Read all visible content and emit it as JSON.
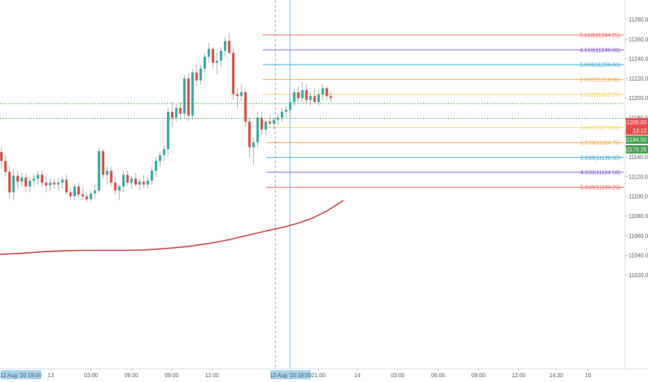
{
  "chart_data": {
    "type": "candlestick",
    "instrument_hint": "",
    "y_axis": {
      "ticks": [
        "11280.00",
        "11260.00",
        "11240.00",
        "11220.00",
        "11200.00",
        "11180.00",
        "11160.00",
        "11140.00",
        "11120.00",
        "11100.00",
        "11080.00",
        "11060.00",
        "11040.00",
        "11020.00"
      ],
      "ylim": [
        11013,
        11290
      ]
    },
    "x_axis": {
      "ticks": [
        "12 Aug '20  19:00",
        "13",
        "03:00",
        "06:00",
        "09:00",
        "12:00",
        "13 Aug '20  19:00",
        "21:00",
        "14",
        "03:00",
        "06:00",
        "09:00",
        "12:00",
        "14:30",
        "16"
      ],
      "highlighted": [
        "12 Aug '20  19:00",
        "13 Aug '20  19:00"
      ]
    },
    "price_badges": [
      {
        "label": "11200.00",
        "value": 11200.0,
        "color": "#e84a4a"
      },
      {
        "label": "13:13",
        "value": null,
        "color": "#e84a4a"
      },
      {
        "label": "11194.50",
        "value": 11194.5,
        "color": "#3f9d48"
      },
      {
        "label": "11179.25",
        "value": 11179.25,
        "color": "#3f9d48"
      }
    ],
    "dotted_levels": [
      11194.5,
      11179.25
    ],
    "fib_levels": [
      {
        "label": "5.618(11264.25)",
        "value": 11264.25,
        "color": "#f0574c"
      },
      {
        "label": "4.618(11249.00)",
        "value": 11249.0,
        "color": "#7a4fc9"
      },
      {
        "label": "3.618(11234.00)",
        "value": 11234.0,
        "color": "#2aa1d6"
      },
      {
        "label": "2.618(11219.00)",
        "value": 11219.0,
        "color": "#ff9c2a"
      },
      {
        "label": "1.618(11203.75)",
        "value": 11203.75,
        "color": "#f5d44a"
      },
      {
        "label": "1.618(11170.00)",
        "value": 11170.0,
        "color": "#f5d44a"
      },
      {
        "label": "2.618(11154.75)",
        "value": 11154.75,
        "color": "#ff9c2a"
      },
      {
        "label": "3.618(11139.50)",
        "value": 11139.5,
        "color": "#2aa1d6"
      },
      {
        "label": "4.618(11124.50)",
        "value": 11124.5,
        "color": "#7a4fc9"
      },
      {
        "label": "5.618(11109.25)",
        "value": 11109.25,
        "color": "#f0574c"
      }
    ],
    "moving_average": {
      "color": "#c0282c",
      "points": [
        [
          0,
          11041
        ],
        [
          30,
          11042
        ],
        [
          60,
          11043.5
        ],
        [
          90,
          11044.5
        ],
        [
          120,
          11045
        ],
        [
          150,
          11045
        ],
        [
          180,
          11045
        ],
        [
          210,
          11045.5
        ],
        [
          240,
          11047
        ],
        [
          270,
          11049
        ],
        [
          300,
          11052
        ],
        [
          330,
          11056
        ],
        [
          360,
          11061
        ],
        [
          390,
          11066
        ],
        [
          410,
          11069
        ],
        [
          430,
          11073
        ],
        [
          450,
          11078
        ],
        [
          470,
          11085
        ],
        [
          494,
          11096
        ]
      ]
    },
    "candles": [
      [
        11145,
        11150,
        11128,
        11136
      ],
      [
        11136,
        11142,
        11120,
        11125
      ],
      [
        11125,
        11130,
        11098,
        11104
      ],
      [
        11104,
        11128,
        11096,
        11121
      ],
      [
        11121,
        11126,
        11108,
        11115
      ],
      [
        11115,
        11124,
        11110,
        11119
      ],
      [
        11119,
        11123,
        11105,
        11110
      ],
      [
        11110,
        11120,
        11104,
        11116
      ],
      [
        11116,
        11122,
        11110,
        11118
      ],
      [
        11118,
        11126,
        11112,
        11122
      ],
      [
        11122,
        11126,
        11110,
        11114
      ],
      [
        11114,
        11120,
        11104,
        11111
      ],
      [
        11111,
        11118,
        11106,
        11114
      ],
      [
        11114,
        11118,
        11108,
        11112
      ],
      [
        11112,
        11118,
        11106,
        11114
      ],
      [
        11114,
        11120,
        11108,
        11117
      ],
      [
        11117,
        11122,
        11102,
        11104
      ],
      [
        11104,
        11108,
        11096,
        11100
      ],
      [
        11100,
        11112,
        11096,
        11110
      ],
      [
        11110,
        11114,
        11098,
        11102
      ],
      [
        11102,
        11110,
        11096,
        11100
      ],
      [
        11100,
        11104,
        11094,
        11097
      ],
      [
        11097,
        11106,
        11095,
        11103
      ],
      [
        11103,
        11112,
        11098,
        11106
      ],
      [
        11106,
        11150,
        11104,
        11146
      ],
      [
        11146,
        11148,
        11118,
        11122
      ],
      [
        11122,
        11130,
        11112,
        11126
      ],
      [
        11126,
        11130,
        11110,
        11114
      ],
      [
        11114,
        11120,
        11102,
        11106
      ],
      [
        11106,
        11112,
        11096,
        11110
      ],
      [
        11110,
        11126,
        11105,
        11122
      ],
      [
        11122,
        11126,
        11110,
        11114
      ],
      [
        11114,
        11120,
        11108,
        11118
      ],
      [
        11118,
        11124,
        11110,
        11112
      ],
      [
        11112,
        11118,
        11106,
        11115
      ],
      [
        11115,
        11122,
        11108,
        11112
      ],
      [
        11112,
        11120,
        11108,
        11116
      ],
      [
        11116,
        11130,
        11112,
        11126
      ],
      [
        11126,
        11140,
        11120,
        11136
      ],
      [
        11136,
        11146,
        11130,
        11142
      ],
      [
        11142,
        11152,
        11136,
        11148
      ],
      [
        11148,
        11190,
        11140,
        11186
      ],
      [
        11186,
        11196,
        11170,
        11180
      ],
      [
        11180,
        11194,
        11176,
        11190
      ],
      [
        11190,
        11196,
        11178,
        11184
      ],
      [
        11184,
        11224,
        11180,
        11220
      ],
      [
        11220,
        11226,
        11176,
        11182
      ],
      [
        11182,
        11230,
        11178,
        11226
      ],
      [
        11226,
        11234,
        11212,
        11218
      ],
      [
        11218,
        11234,
        11214,
        11230
      ],
      [
        11230,
        11246,
        11226,
        11242
      ],
      [
        11242,
        11256,
        11236,
        11250
      ],
      [
        11250,
        11252,
        11230,
        11236
      ],
      [
        11236,
        11246,
        11224,
        11238
      ],
      [
        11238,
        11252,
        11232,
        11248
      ],
      [
        11248,
        11262,
        11242,
        11258
      ],
      [
        11258,
        11266,
        11244,
        11246
      ],
      [
        11246,
        11250,
        11198,
        11204
      ],
      [
        11204,
        11210,
        11190,
        11202
      ],
      [
        11202,
        11214,
        11196,
        11206
      ],
      [
        11206,
        11208,
        11170,
        11176
      ],
      [
        11176,
        11180,
        11140,
        11150
      ],
      [
        11150,
        11160,
        11132,
        11155
      ],
      [
        11155,
        11186,
        11150,
        11180
      ],
      [
        11180,
        11186,
        11162,
        11168
      ],
      [
        11168,
        11178,
        11162,
        11176
      ],
      [
        11176,
        11182,
        11170,
        11174
      ],
      [
        11174,
        11180,
        11168,
        11178
      ],
      [
        11178,
        11184,
        11172,
        11180
      ],
      [
        11180,
        11190,
        11176,
        11186
      ],
      [
        11186,
        11192,
        11180,
        11188
      ],
      [
        11188,
        11200,
        11184,
        11196
      ],
      [
        11196,
        11210,
        11192,
        11206
      ],
      [
        11206,
        11212,
        11196,
        11200
      ],
      [
        11200,
        11216,
        11196,
        11208
      ],
      [
        11208,
        11214,
        11194,
        11198
      ],
      [
        11198,
        11206,
        11192,
        11202
      ],
      [
        11202,
        11210,
        11194,
        11196
      ],
      [
        11196,
        11208,
        11192,
        11204
      ],
      [
        11204,
        11214,
        11198,
        11210
      ],
      [
        11210,
        11212,
        11198,
        11202
      ],
      [
        11202,
        11206,
        11196,
        11200
      ]
    ]
  },
  "colors": {
    "up": "#26a69a",
    "down": "#d6403e",
    "session_line": "#5aaed6",
    "axis_text": "#50535e",
    "highlight_label_bg": "#a5d4ec"
  }
}
